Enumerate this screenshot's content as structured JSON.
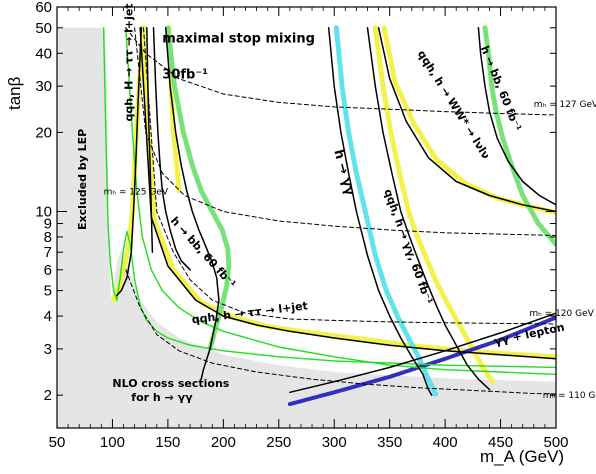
{
  "chart_data": {
    "type": "line",
    "title": "maximal stop mixing",
    "subtitle": "30fb⁻¹",
    "xlabel": "m_A (GeV)",
    "ylabel": "tanβ",
    "x_scale": "linear",
    "y_scale": "log",
    "xlim": [
      50,
      500
    ],
    "ylim": [
      1.5,
      60
    ],
    "x_ticks": [
      50,
      100,
      150,
      200,
      250,
      300,
      350,
      400,
      450,
      500
    ],
    "y_ticks": [
      2,
      3,
      4,
      5,
      6,
      7,
      8,
      9,
      10,
      20,
      30,
      40,
      50,
      60
    ],
    "grid": false,
    "colors": {
      "lep_region": "#e5e5e5",
      "nlo_green": "#22dd22",
      "yellow_band": "#f2f24a",
      "cyan_band": "#5fe3ec",
      "green_band": "#77e277",
      "blue_band": "#3030c0",
      "contour": "#000000"
    },
    "regions": [
      {
        "name": "Excluded by LEP",
        "points": [
          [
            50,
            1.5
          ],
          [
            500,
            1.5
          ],
          [
            500,
            2.25
          ],
          [
            420,
            2.3
          ],
          [
            350,
            2.38
          ],
          [
            300,
            2.45
          ],
          [
            250,
            2.6
          ],
          [
            200,
            2.85
          ],
          [
            160,
            3.3
          ],
          [
            140,
            3.8
          ],
          [
            125,
            4.6
          ],
          [
            118,
            5.5
          ],
          [
            112,
            6.5
          ],
          [
            108,
            7.2
          ],
          [
            104,
            6.4
          ],
          [
            101,
            5.2
          ],
          [
            99,
            4.6
          ],
          [
            97,
            7
          ],
          [
            96,
            15
          ],
          [
            95,
            30
          ],
          [
            93,
            50
          ],
          [
            50,
            50
          ]
        ]
      }
    ],
    "series": [
      {
        "name": "NLO cross sections for h → γγ",
        "style": "green",
        "x": [
          92,
          94,
          96,
          98,
          101,
          104,
          107,
          110,
          113,
          116,
          120,
          125,
          130,
          140,
          150,
          170,
          200,
          250,
          300,
          400,
          500
        ],
        "y": [
          50,
          20,
          9,
          6.5,
          5.0,
          4.6,
          5.6,
          7.2,
          8.4,
          7.5,
          5.5,
          4.4,
          3.9,
          3.5,
          3.3,
          3.1,
          2.95,
          2.8,
          2.7,
          2.6,
          2.55
        ]
      },
      {
        "style": "green",
        "x": [
          112,
          118,
          122,
          127,
          135,
          145,
          160,
          180,
          200,
          250,
          300,
          350,
          400,
          450,
          500
        ],
        "y": [
          50,
          20,
          12,
          8,
          6,
          5,
          4.3,
          3.8,
          3.5,
          3.05,
          2.8,
          2.6,
          2.5,
          2.45,
          2.4
        ]
      },
      {
        "name": "qqh, H → ττ → l+jet",
        "style": "contour",
        "x": [
          104,
          108,
          113,
          117,
          119,
          121,
          123,
          125,
          126
        ],
        "y": [
          4.8,
          5.0,
          5.6,
          7.0,
          10,
          15,
          25,
          40,
          50
        ]
      },
      {
        "name": "qqh, H → ττ → l+jet (yellow band)",
        "style": "yellow",
        "x": [
          101,
          106,
          111,
          115,
          118,
          120,
          123,
          126,
          128
        ],
        "y": [
          4.6,
          5.2,
          6.2,
          7.6,
          10,
          15,
          25,
          40,
          50
        ]
      },
      {
        "style": "contour",
        "x": [
          131,
          132,
          133,
          134,
          135,
          136
        ],
        "y": [
          50,
          30,
          20,
          15,
          10,
          7
        ]
      },
      {
        "style": "contour",
        "x": [
          137,
          139,
          141,
          143,
          145,
          148,
          152,
          157,
          162,
          170
        ],
        "y": [
          50,
          30,
          20,
          15,
          12,
          10,
          8.5,
          7.2,
          6.5,
          6.0
        ]
      },
      {
        "name": "h → bb, 60 fb⁻¹",
        "style": "contour",
        "x": [
          148,
          152,
          157,
          162,
          167,
          172,
          178,
          184,
          190,
          194,
          196,
          193,
          188,
          182,
          180
        ],
        "y": [
          50,
          30,
          20,
          15,
          12,
          10,
          8.5,
          7.4,
          6.4,
          5.6,
          4.6,
          3.8,
          3.0,
          2.5,
          2.3
        ]
      },
      {
        "name": "h → bb, 60 fb⁻¹ (green band)",
        "style": "greenband",
        "x": [
          150,
          156,
          164,
          172,
          180,
          190,
          199,
          204,
          205,
          203,
          199,
          193,
          188
        ],
        "y": [
          50,
          30,
          20,
          15,
          12,
          10,
          8.5,
          7.2,
          6.2,
          5.2,
          4.4,
          3.6,
          3.0
        ]
      },
      {
        "name": "yellow band (left)",
        "style": "yellow",
        "x": [
          151,
          153,
          155,
          158,
          160
        ],
        "y": [
          50,
          30,
          20,
          15,
          12
        ]
      },
      {
        "name": "qqh, h → ττ → l+jet",
        "style": "contour",
        "x": [
          125,
          135,
          150,
          175,
          200,
          230,
          260,
          300,
          350,
          400,
          450,
          500
        ],
        "y": [
          50,
          9.5,
          6.2,
          4.6,
          4.0,
          3.7,
          3.5,
          3.3,
          3.1,
          2.95,
          2.85,
          2.75
        ]
      },
      {
        "style": "yellow",
        "x": [
          127,
          138,
          155,
          180,
          210,
          240,
          280,
          330,
          380,
          440,
          500
        ],
        "y": [
          50,
          9.2,
          6.0,
          4.5,
          3.95,
          3.65,
          3.45,
          3.25,
          3.05,
          2.9,
          2.8
        ]
      },
      {
        "name": "h → γγ",
        "style": "contour",
        "x": [
          295,
          300,
          306,
          313,
          320,
          330,
          340,
          350,
          360,
          370,
          380,
          385,
          388
        ],
        "y": [
          50,
          30,
          20,
          14,
          10,
          6.8,
          5.0,
          4.0,
          3.3,
          2.8,
          2.4,
          2.1,
          2.0
        ]
      },
      {
        "name": "h → γγ (cyan band)",
        "style": "cyan",
        "x": [
          302,
          307,
          313,
          320,
          328,
          337,
          347,
          357,
          367,
          376,
          385,
          392
        ],
        "y": [
          50,
          30,
          20,
          14,
          10,
          6.8,
          5.0,
          4.0,
          3.3,
          2.8,
          2.3,
          2.0
        ]
      },
      {
        "name": "qqh, h → γγ, 60 fb⁻¹",
        "style": "contour",
        "x": [
          330,
          337,
          344,
          352,
          360,
          368,
          376,
          384,
          392,
          400,
          410,
          420,
          430,
          440
        ],
        "y": [
          50,
          30,
          20,
          14,
          10,
          8,
          6.5,
          5.3,
          4.4,
          3.7,
          3.1,
          2.6,
          2.3,
          2.1
        ]
      },
      {
        "style": "yellow",
        "x": [
          337,
          344,
          351,
          359,
          367,
          375,
          384,
          393,
          403,
          413,
          423,
          433,
          443
        ],
        "y": [
          50,
          30,
          20,
          14,
          10,
          8,
          6.5,
          5.3,
          4.4,
          3.7,
          3.1,
          2.6,
          2.25
        ]
      },
      {
        "name": "qqh, h → WW* → lνlν",
        "style": "contour",
        "x": [
          340,
          350,
          365,
          385,
          410,
          440,
          470,
          500
        ],
        "y": [
          50,
          32,
          22,
          16,
          13,
          11.5,
          10.6,
          10
        ]
      },
      {
        "style": "yellow",
        "x": [
          345,
          355,
          372,
          392,
          418,
          448,
          478,
          500
        ],
        "y": [
          50,
          31,
          21.5,
          15.8,
          12.8,
          11.2,
          10.4,
          9.9
        ]
      },
      {
        "name": "h → bb, 60 fb⁻¹ (right)",
        "style": "contour",
        "x": [
          430,
          432,
          436,
          440,
          447,
          457,
          470,
          485,
          500
        ],
        "y": [
          50,
          40,
          30,
          24,
          19,
          15.5,
          13,
          11.5,
          10.6
        ]
      },
      {
        "style": "greenband",
        "x": [
          436,
          439,
          442,
          446,
          452,
          460,
          470,
          484,
          500
        ],
        "y": [
          50,
          40,
          30,
          24,
          19,
          15,
          11.5,
          9,
          7.5
        ]
      },
      {
        "name": "γγ + lepton",
        "style": "contour",
        "x": [
          260,
          300,
          350,
          400,
          450,
          500
        ],
        "y": [
          2.05,
          2.25,
          2.55,
          2.95,
          3.45,
          4.1
        ]
      },
      {
        "style": "blue",
        "x": [
          260,
          300,
          350,
          400,
          450,
          500
        ],
        "y": [
          1.85,
          2.05,
          2.35,
          2.75,
          3.25,
          3.95
        ]
      },
      {
        "name": "m_h = 127 GeV",
        "style": "dashed",
        "x": [
          112,
          130,
          160,
          200,
          250,
          300,
          350,
          400,
          450,
          500
        ],
        "y": [
          50,
          40,
          32,
          28,
          26,
          25,
          24.5,
          24,
          23.6,
          23.3
        ]
      },
      {
        "name": "m_h = 125 GeV",
        "style": "dashed",
        "x": [
          120,
          130,
          145,
          165,
          200,
          250,
          300,
          350,
          400,
          450,
          500
        ],
        "y": [
          50,
          20,
          14,
          11.5,
          10,
          9.2,
          8.8,
          8.5,
          8.3,
          8.2,
          8.1
        ]
      },
      {
        "name": "m_h = 120 GeV",
        "style": "dashed",
        "x": [
          128,
          140,
          155,
          170,
          190,
          220,
          260,
          300,
          350,
          400,
          450,
          500
        ],
        "y": [
          50,
          10,
          7,
          5.5,
          4.6,
          4.1,
          3.9,
          3.85,
          3.8,
          3.77,
          3.75,
          3.73
        ]
      },
      {
        "name": "m_h = 110 GeV",
        "style": "dashed",
        "x": [
          112,
          125,
          140,
          160,
          190,
          230,
          280,
          330,
          380,
          430,
          480,
          500
        ],
        "y": [
          6,
          4.3,
          3.4,
          2.95,
          2.65,
          2.45,
          2.3,
          2.2,
          2.13,
          2.08,
          2.03,
          2.02
        ]
      }
    ],
    "annotations": [
      {
        "text": "maximal stop mixing",
        "class": "anno-big"
      },
      {
        "text": "30fb⁻¹",
        "class": "anno-big"
      },
      {
        "text": "Excluded by LEP",
        "class": "anno",
        "rotate": -90
      },
      {
        "text": "qqh, H → ττ → l+jet",
        "class": "anno",
        "rotate": -90
      },
      {
        "text": "h → bb, 60 fb⁻¹",
        "class": "anno",
        "rotate": 48
      },
      {
        "text": "qqh, h → ττ → l+jet",
        "class": "anno",
        "rotate": -7
      },
      {
        "text": "NLO cross sections",
        "class": "anno"
      },
      {
        "text": "for h → γγ",
        "class": "anno"
      },
      {
        "text": "h → γγ",
        "class": "anno-big",
        "rotate": 75
      },
      {
        "text": "qqh, h → γγ, 60 fb⁻¹",
        "class": "anno",
        "rotate": 70
      },
      {
        "text": "qqh, h → WW* → lνlν",
        "class": "anno",
        "rotate": 58
      },
      {
        "text": "h → bb, 60 fb⁻¹",
        "class": "anno",
        "rotate": 68
      },
      {
        "text": "γγ + lepton",
        "class": "anno",
        "rotate": -12
      },
      {
        "text": "mₕ = 127 GeV",
        "class": "anno-small"
      },
      {
        "text": "mₕ = 125 GeV",
        "class": "anno-small"
      },
      {
        "text": "mₕ = 120 GeV",
        "class": "anno-small"
      },
      {
        "text": "mₕ = 110 GeV",
        "class": "anno-small"
      }
    ]
  }
}
